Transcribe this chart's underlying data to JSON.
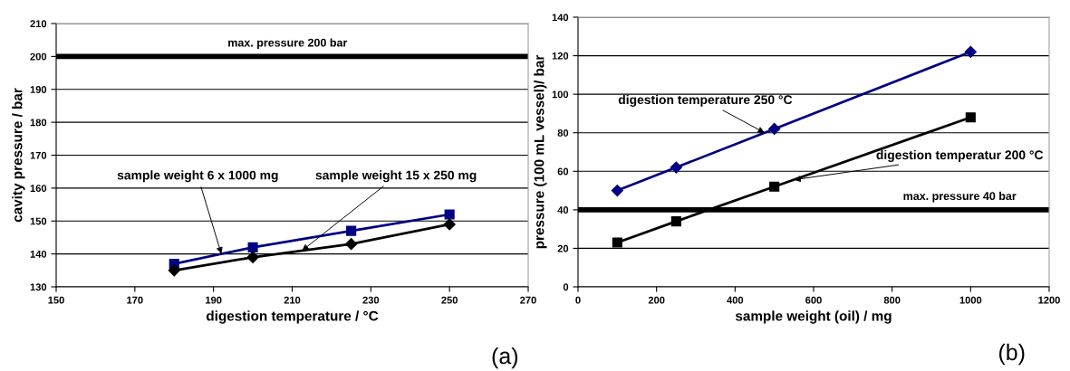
{
  "chart_data": [
    {
      "type": "line",
      "xlabel": "digestion temperature / °C",
      "ylabel": "cavity pressure / bar",
      "x": [
        180,
        200,
        225,
        250
      ],
      "series": [
        {
          "name": "sample weight 6 x 1000 mg",
          "color": "#000080",
          "marker": "square",
          "values": [
            137,
            142,
            147,
            152
          ]
        },
        {
          "name": "sample weight 15 x 250 mg",
          "color": "#000000",
          "marker": "diamond",
          "values": [
            135,
            139,
            143,
            149
          ]
        }
      ],
      "xlim": [
        150,
        270
      ],
      "xticks": [
        150,
        170,
        190,
        210,
        230,
        250,
        270
      ],
      "ylim": [
        130,
        210
      ],
      "yticks": [
        130,
        140,
        150,
        160,
        170,
        180,
        190,
        200,
        210
      ],
      "grid": "y",
      "line_style": "solid",
      "ref_lines": [
        {
          "axis": "y",
          "value": 200,
          "label": "max. pressure 200 bar",
          "color": "#000000"
        }
      ],
      "annotations": [
        "(a)"
      ]
    },
    {
      "type": "line",
      "xlabel": "sample weight (oil) / mg",
      "ylabel": "pressure (100 mL vessel)/ bar",
      "x": [
        100,
        250,
        500,
        1000
      ],
      "series": [
        {
          "name": "digestion temperature 250 °C",
          "color": "#000080",
          "marker": "diamond",
          "values": [
            50,
            62,
            82,
            122
          ]
        },
        {
          "name": "digestion temperatur 200 °C",
          "color": "#000000",
          "marker": "square",
          "values": [
            23,
            34,
            52,
            88
          ]
        }
      ],
      "xlim": [
        0,
        1200
      ],
      "xticks": [
        0,
        200,
        400,
        600,
        800,
        1000,
        1200
      ],
      "ylim": [
        0,
        140
      ],
      "yticks": [
        0,
        20,
        40,
        60,
        80,
        100,
        120,
        140
      ],
      "grid": "y",
      "line_style": "solid",
      "ref_lines": [
        {
          "axis": "y",
          "value": 40,
          "label": "max. pressure 40 bar",
          "color": "#000000"
        }
      ],
      "annotations": [
        "(b)"
      ]
    }
  ]
}
